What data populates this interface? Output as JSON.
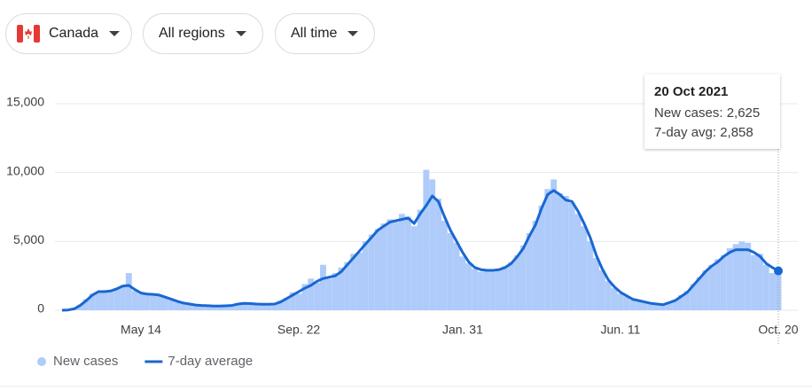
{
  "filters": [
    "Canada",
    "All regions",
    "All time"
  ],
  "chart_data": {
    "type": "bar",
    "categories": [
      null,
      null,
      null,
      null,
      null,
      null,
      null,
      null,
      null,
      null,
      null,
      null,
      null,
      "May 14",
      null,
      null,
      null,
      null,
      null,
      null,
      null,
      null,
      null,
      null,
      null,
      null,
      null,
      null,
      null,
      null,
      null,
      null,
      null,
      null,
      null,
      null,
      null,
      null,
      null,
      "Sep. 22",
      null,
      null,
      null,
      null,
      null,
      null,
      null,
      null,
      null,
      null,
      null,
      null,
      null,
      null,
      null,
      null,
      null,
      null,
      null,
      null,
      null,
      null,
      null,
      null,
      null,
      null,
      "Jan. 31",
      null,
      null,
      null,
      null,
      null,
      null,
      null,
      null,
      null,
      null,
      null,
      null,
      null,
      null,
      null,
      null,
      null,
      null,
      null,
      null,
      null,
      null,
      null,
      null,
      null,
      "Jun. 11",
      null,
      null,
      null,
      null,
      null,
      null,
      null,
      null,
      null,
      null,
      null,
      null,
      null,
      null,
      null,
      null,
      null,
      null,
      null,
      null,
      null,
      null,
      null,
      null,
      null,
      "Oct. 20"
    ],
    "series": [
      {
        "name": "New cases",
        "type": "bar",
        "color": "#aecbfa",
        "values": [
          0,
          30,
          150,
          400,
          800,
          1200,
          1300,
          1400,
          1350,
          1600,
          1800,
          2700,
          1400,
          1200,
          1150,
          1100,
          1050,
          900,
          750,
          600,
          480,
          420,
          350,
          400,
          300,
          280,
          320,
          300,
          400,
          500,
          450,
          520,
          400,
          500,
          420,
          500,
          700,
          900,
          1300,
          1200,
          1900,
          2300,
          2000,
          3300,
          2300,
          2700,
          3100,
          3500,
          4100,
          4200,
          5000,
          5500,
          5900,
          6300,
          6600,
          6400,
          7000,
          6800,
          6100,
          7300,
          10200,
          9500,
          8100,
          6500,
          5600,
          4900,
          3900,
          3400,
          3000,
          2800,
          3000,
          2800,
          3000,
          3200,
          3500,
          4000,
          4700,
          5600,
          6500,
          7600,
          8800,
          9500,
          8500,
          8300,
          7800,
          7000,
          6100,
          5000,
          3800,
          2900,
          2100,
          1600,
          1200,
          1000,
          750,
          650,
          550,
          480,
          420,
          380,
          600,
          750,
          1100,
          1400,
          1900,
          2400,
          2900,
          3300,
          3700,
          4000,
          4500,
          4800,
          5000,
          4900,
          4000,
          4100,
          3300,
          2700,
          2625
        ]
      },
      {
        "name": "7-day average",
        "type": "line",
        "color": "#1967d2",
        "values": [
          0,
          20,
          100,
          350,
          700,
          1100,
          1350,
          1350,
          1400,
          1550,
          1750,
          1800,
          1500,
          1250,
          1180,
          1150,
          1100,
          950,
          800,
          650,
          520,
          450,
          380,
          350,
          330,
          310,
          300,
          320,
          350,
          450,
          500,
          480,
          450,
          440,
          440,
          450,
          600,
          850,
          1100,
          1350,
          1600,
          1800,
          2100,
          2300,
          2400,
          2500,
          2800,
          3300,
          3800,
          4300,
          4800,
          5300,
          5800,
          6100,
          6400,
          6500,
          6600,
          6700,
          6300,
          7000,
          7600,
          8300,
          7900,
          6800,
          5800,
          5000,
          4200,
          3500,
          3100,
          2950,
          2900,
          2900,
          2950,
          3100,
          3400,
          3900,
          4500,
          5400,
          6200,
          7400,
          8400,
          8700,
          8400,
          8000,
          7900,
          7200,
          6300,
          5300,
          4000,
          3000,
          2200,
          1700,
          1300,
          1050,
          800,
          700,
          600,
          500,
          450,
          400,
          550,
          700,
          1000,
          1300,
          1800,
          2300,
          2800,
          3200,
          3500,
          3900,
          4200,
          4400,
          4400,
          4400,
          4200,
          3900,
          3400,
          3100,
          2858
        ]
      }
    ],
    "ylim": [
      0,
      15000
    ],
    "yticks": [
      0,
      {
        "value": 5000,
        "label": "5,000"
      },
      {
        "value": 10000,
        "label": "10,000"
      },
      {
        "value": 15000,
        "label": "15,000"
      }
    ],
    "grid": true,
    "tooltip": {
      "title": "20 Oct 2021",
      "lines": [
        "New cases: 2,625",
        "7-day avg: 2,858"
      ]
    }
  }
}
